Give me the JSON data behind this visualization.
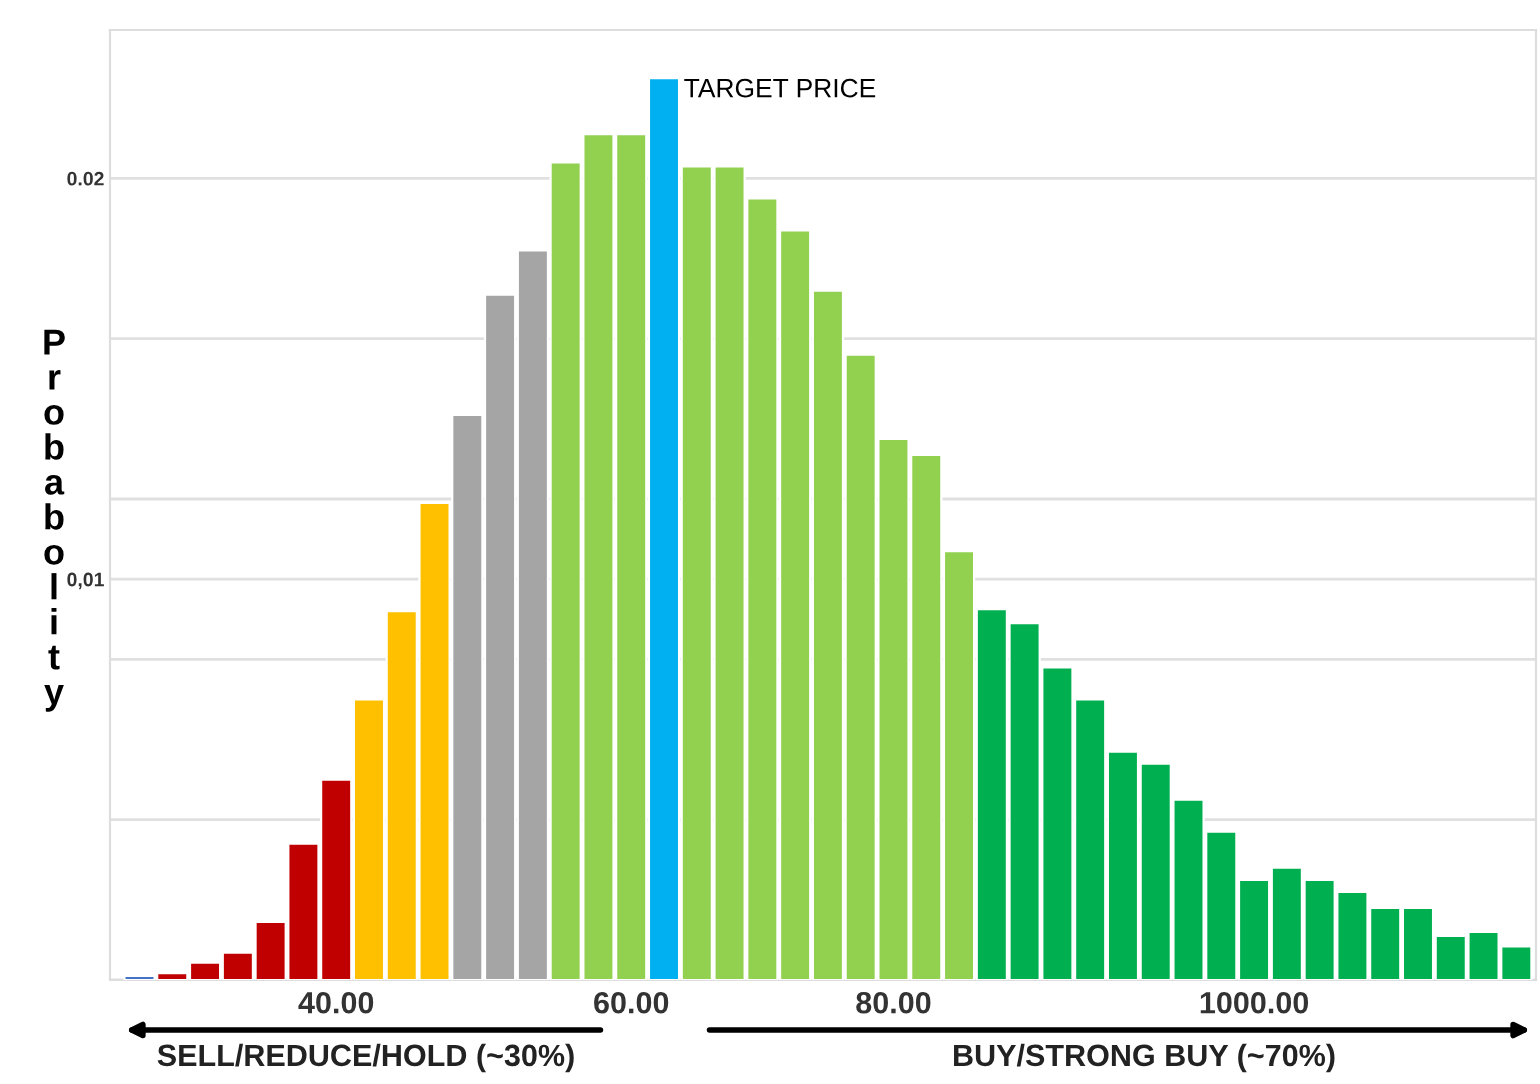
{
  "chart_data": {
    "type": "bar",
    "ylabel": "Probabolity",
    "categories": [
      null,
      null,
      null,
      null,
      null,
      null,
      "40.00",
      null,
      null,
      null,
      null,
      null,
      null,
      null,
      null,
      "60.00",
      null,
      null,
      null,
      null,
      null,
      null,
      null,
      "80.00",
      null,
      null,
      null,
      null,
      null,
      null,
      null,
      null,
      null,
      null,
      "1000.00",
      null,
      null,
      null,
      null,
      null,
      null,
      null,
      null
    ],
    "values": [
      0.0001,
      0.00017,
      0.00043,
      0.00068,
      0.00145,
      0.0034,
      0.005,
      0.007,
      0.0092,
      0.0119,
      0.0141,
      0.0171,
      0.0182,
      0.0204,
      0.0211,
      0.0211,
      0.0225,
      0.0203,
      0.0203,
      0.0195,
      0.0187,
      0.0172,
      0.0156,
      0.0135,
      0.0131,
      0.0107,
      0.00925,
      0.0089,
      0.0078,
      0.007,
      0.0057,
      0.0054,
      0.0045,
      0.0037,
      0.0025,
      0.0028,
      0.0025,
      0.0022,
      0.0018,
      0.0018,
      0.0011,
      0.0012,
      0.00084
    ],
    "colors": [
      "#4472c4",
      "#c00000",
      "#c00000",
      "#c00000",
      "#c00000",
      "#c00000",
      "#c00000",
      "#ffc000",
      "#ffc000",
      "#ffc000",
      "#a5a5a5",
      "#a5a5a5",
      "#a5a5a5",
      "#92d050",
      "#92d050",
      "#92d050",
      "#00b0f0",
      "#92d050",
      "#92d050",
      "#92d050",
      "#92d050",
      "#92d050",
      "#92d050",
      "#92d050",
      "#92d050",
      "#92d050",
      "#00b050",
      "#00b050",
      "#00b050",
      "#00b050",
      "#00b050",
      "#00b050",
      "#00b050",
      "#00b050",
      "#00b050",
      "#00b050",
      "#00b050",
      "#00b050",
      "#00b050",
      "#00b050",
      "#00b050",
      "#00b050",
      "#00b050"
    ],
    "ylim": [
      0,
      0.0237
    ],
    "yticks": [
      {
        "value": 0,
        "label": null
      },
      {
        "value": 0.004,
        "label": null
      },
      {
        "value": 0.008,
        "label": null
      },
      {
        "value": 0.01,
        "label": "0,01"
      },
      {
        "value": 0.012,
        "label": null
      },
      {
        "value": 0.016,
        "label": null
      },
      0.02
    ],
    "grid": "y",
    "annotations": [
      "TARGET PRICE",
      "SELL/REDUCE/HOLD (~30%)",
      "BUY/STRONG BUY (~70%)"
    ]
  }
}
